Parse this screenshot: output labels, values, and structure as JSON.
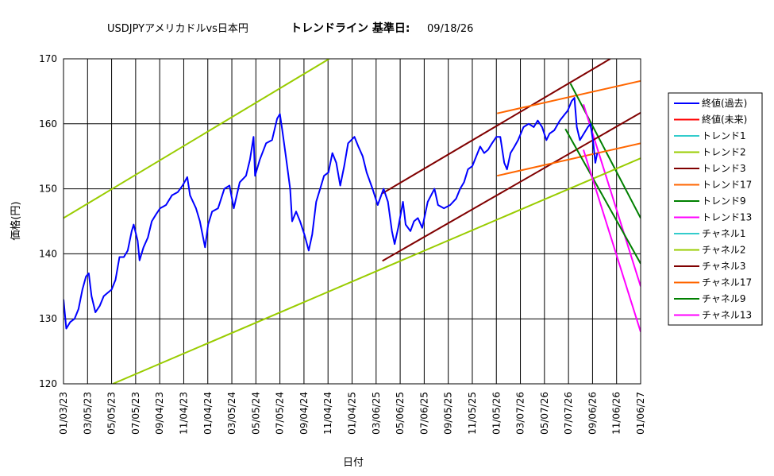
{
  "chart_data": {
    "type": "line",
    "title": {
      "part1": "USDJPYアメリカドルvs日本円",
      "part2": "トレンドライン 基準日:",
      "date": "09/18/26"
    },
    "xlabel": "日付",
    "ylabel": "価格(円)",
    "ylim": [
      120,
      170
    ],
    "yticks": [
      120,
      130,
      140,
      150,
      160,
      170
    ],
    "x_range": [
      "2023-01-03",
      "2027-01-06"
    ],
    "x_ticks": [
      {
        "date": "2023-01-03",
        "label": "01/03/23"
      },
      {
        "date": "2023-03-05",
        "label": "03/05/23"
      },
      {
        "date": "2023-05-05",
        "label": "05/05/23"
      },
      {
        "date": "2023-07-05",
        "label": "07/05/23"
      },
      {
        "date": "2023-09-04",
        "label": "09/04/23"
      },
      {
        "date": "2023-11-04",
        "label": "11/04/23"
      },
      {
        "date": "2024-01-04",
        "label": "01/04/24"
      },
      {
        "date": "2024-03-05",
        "label": "03/05/24"
      },
      {
        "date": "2024-05-05",
        "label": "05/05/24"
      },
      {
        "date": "2024-07-05",
        "label": "07/05/24"
      },
      {
        "date": "2024-09-04",
        "label": "09/04/24"
      },
      {
        "date": "2024-11-04",
        "label": "11/04/24"
      },
      {
        "date": "2025-01-04",
        "label": "01/04/25"
      },
      {
        "date": "2025-03-06",
        "label": "03/06/25"
      },
      {
        "date": "2025-05-06",
        "label": "05/06/25"
      },
      {
        "date": "2025-07-06",
        "label": "07/06/25"
      },
      {
        "date": "2025-09-05",
        "label": "09/05/25"
      },
      {
        "date": "2025-11-05",
        "label": "11/05/25"
      },
      {
        "date": "2026-01-05",
        "label": "01/05/26"
      },
      {
        "date": "2026-03-07",
        "label": "03/07/26"
      },
      {
        "date": "2026-05-07",
        "label": "05/07/26"
      },
      {
        "date": "2026-07-07",
        "label": "07/07/26"
      },
      {
        "date": "2026-09-06",
        "label": "09/06/26"
      },
      {
        "date": "2026-11-06",
        "label": "11/06/26"
      },
      {
        "date": "2027-01-06",
        "label": "01/06/27"
      }
    ],
    "grid": true,
    "legend_position": "right",
    "series": [
      {
        "name": "終値(過去)",
        "color": "#0000ff",
        "width": 2,
        "in_legend": true,
        "points": [
          [
            "2023-01-03",
            133.0
          ],
          [
            "2023-01-10",
            128.5
          ],
          [
            "2023-01-20",
            129.5
          ],
          [
            "2023-01-31",
            130.0
          ],
          [
            "2023-02-10",
            131.5
          ],
          [
            "2023-02-20",
            134.5
          ],
          [
            "2023-03-01",
            136.5
          ],
          [
            "2023-03-08",
            137.0
          ],
          [
            "2023-03-15",
            133.5
          ],
          [
            "2023-03-25",
            131.0
          ],
          [
            "2023-04-05",
            132.0
          ],
          [
            "2023-04-15",
            133.5
          ],
          [
            "2023-04-25",
            134.0
          ],
          [
            "2023-05-05",
            134.5
          ],
          [
            "2023-05-15",
            136.0
          ],
          [
            "2023-05-25",
            139.5
          ],
          [
            "2023-06-05",
            139.5
          ],
          [
            "2023-06-15",
            140.5
          ],
          [
            "2023-06-25",
            143.5
          ],
          [
            "2023-06-30",
            144.5
          ],
          [
            "2023-07-10",
            142.0
          ],
          [
            "2023-07-15",
            139.0
          ],
          [
            "2023-07-25",
            141.0
          ],
          [
            "2023-08-05",
            142.5
          ],
          [
            "2023-08-15",
            145.0
          ],
          [
            "2023-08-25",
            146.0
          ],
          [
            "2023-09-05",
            147.0
          ],
          [
            "2023-09-20",
            147.5
          ],
          [
            "2023-10-05",
            149.0
          ],
          [
            "2023-10-20",
            149.5
          ],
          [
            "2023-11-01",
            150.5
          ],
          [
            "2023-11-13",
            151.8
          ],
          [
            "2023-11-20",
            149.0
          ],
          [
            "2023-12-05",
            147.0
          ],
          [
            "2023-12-15",
            145.0
          ],
          [
            "2023-12-28",
            141.0
          ],
          [
            "2024-01-05",
            144.5
          ],
          [
            "2024-01-15",
            146.5
          ],
          [
            "2024-01-30",
            147.0
          ],
          [
            "2024-02-15",
            150.0
          ],
          [
            "2024-02-28",
            150.5
          ],
          [
            "2024-03-10",
            147.0
          ],
          [
            "2024-03-25",
            151.0
          ],
          [
            "2024-04-10",
            152.0
          ],
          [
            "2024-04-20",
            154.5
          ],
          [
            "2024-04-29",
            158.0
          ],
          [
            "2024-05-03",
            152.0
          ],
          [
            "2024-05-15",
            154.5
          ],
          [
            "2024-05-31",
            157.0
          ],
          [
            "2024-06-15",
            157.5
          ],
          [
            "2024-06-28",
            160.8
          ],
          [
            "2024-07-05",
            161.5
          ],
          [
            "2024-07-11",
            159.0
          ],
          [
            "2024-07-20",
            155.0
          ],
          [
            "2024-07-31",
            150.0
          ],
          [
            "2024-08-05",
            145.0
          ],
          [
            "2024-08-15",
            146.5
          ],
          [
            "2024-08-25",
            145.0
          ],
          [
            "2024-09-05",
            143.0
          ],
          [
            "2024-09-16",
            140.5
          ],
          [
            "2024-09-25",
            143.0
          ],
          [
            "2024-10-05",
            148.0
          ],
          [
            "2024-10-15",
            150.0
          ],
          [
            "2024-10-25",
            152.0
          ],
          [
            "2024-11-05",
            152.5
          ],
          [
            "2024-11-15",
            155.5
          ],
          [
            "2024-11-25",
            154.0
          ],
          [
            "2024-12-05",
            150.5
          ],
          [
            "2024-12-15",
            153.5
          ],
          [
            "2024-12-25",
            157.0
          ],
          [
            "2025-01-10",
            158.0
          ],
          [
            "2025-01-20",
            156.5
          ],
          [
            "2025-01-31",
            155.0
          ],
          [
            "2025-02-10",
            152.5
          ],
          [
            "2025-02-25",
            150.0
          ],
          [
            "2025-03-10",
            147.5
          ],
          [
            "2025-03-25",
            150.0
          ],
          [
            "2025-04-05",
            148.0
          ],
          [
            "2025-04-15",
            143.5
          ],
          [
            "2025-04-22",
            141.5
          ],
          [
            "2025-05-01",
            144.0
          ],
          [
            "2025-05-13",
            148.0
          ],
          [
            "2025-05-20",
            144.5
          ],
          [
            "2025-06-01",
            143.5
          ],
          [
            "2025-06-10",
            145.0
          ],
          [
            "2025-06-20",
            145.5
          ],
          [
            "2025-07-01",
            144.0
          ],
          [
            "2025-07-15",
            148.0
          ],
          [
            "2025-08-01",
            150.0
          ],
          [
            "2025-08-10",
            147.5
          ],
          [
            "2025-08-25",
            147.0
          ],
          [
            "2025-09-10",
            147.5
          ],
          [
            "2025-09-25",
            148.5
          ],
          [
            "2025-10-05",
            150.0
          ],
          [
            "2025-10-15",
            151.0
          ],
          [
            "2025-10-25",
            153.0
          ],
          [
            "2025-11-05",
            153.5
          ],
          [
            "2025-11-15",
            155.0
          ],
          [
            "2025-11-25",
            156.5
          ],
          [
            "2025-12-05",
            155.5
          ],
          [
            "2025-12-15",
            156.0
          ],
          [
            "2025-12-25",
            157.0
          ],
          [
            "2026-01-05",
            158.0
          ],
          [
            "2026-01-15",
            158.0
          ],
          [
            "2026-01-25",
            154.0
          ],
          [
            "2026-02-01",
            153.0
          ],
          [
            "2026-02-10",
            155.5
          ],
          [
            "2026-02-20",
            156.5
          ],
          [
            "2026-03-01",
            157.5
          ],
          [
            "2026-03-15",
            159.5
          ],
          [
            "2026-03-28",
            160.0
          ],
          [
            "2026-04-10",
            159.5
          ],
          [
            "2026-04-20",
            160.5
          ],
          [
            "2026-05-01",
            159.5
          ],
          [
            "2026-05-12",
            157.5
          ],
          [
            "2026-05-20",
            158.5
          ],
          [
            "2026-06-01",
            159.0
          ],
          [
            "2026-06-15",
            160.5
          ],
          [
            "2026-06-28",
            161.5
          ],
          [
            "2026-07-05",
            162.0
          ],
          [
            "2026-07-15",
            163.5
          ],
          [
            "2026-07-22",
            164.0
          ],
          [
            "2026-07-28",
            159.5
          ],
          [
            "2026-08-05",
            157.5
          ],
          [
            "2026-08-15",
            158.5
          ],
          [
            "2026-08-25",
            159.5
          ],
          [
            "2026-09-01",
            160.0
          ],
          [
            "2026-09-08",
            157.0
          ],
          [
            "2026-09-13",
            154.0
          ],
          [
            "2026-09-18",
            155.5
          ]
        ]
      },
      {
        "name": "終値(未来)",
        "color": "#ff0000",
        "width": 1,
        "in_legend": true,
        "points": []
      },
      {
        "name": "トレンド1",
        "color": "#33cccc",
        "width": 1,
        "in_legend": true,
        "points": []
      },
      {
        "name": "トレンド2",
        "color": "#99cc00",
        "width": 2,
        "in_legend": true,
        "points": [
          [
            "2023-01-03",
            145.5
          ],
          [
            "2024-11-07",
            170.0
          ]
        ]
      },
      {
        "name": "トレンド3",
        "color": "#800000",
        "width": 2,
        "in_legend": true,
        "points": [
          [
            "2025-03-22",
            149.3
          ],
          [
            "2026-10-21",
            170.0
          ]
        ]
      },
      {
        "name": "トレンド17",
        "color": "#ff6600",
        "width": 2,
        "in_legend": true,
        "points": [
          [
            "2026-01-07",
            161.6
          ],
          [
            "2027-01-06",
            166.6
          ]
        ]
      },
      {
        "name": "トレンド9",
        "color": "#008000",
        "width": 2,
        "in_legend": true,
        "points": [
          [
            "2026-07-12",
            166.2
          ],
          [
            "2027-01-06",
            145.5
          ]
        ]
      },
      {
        "name": "トレンド13",
        "color": "#ff00ff",
        "width": 2,
        "in_legend": true,
        "points": [
          [
            "2026-08-14",
            163.0
          ],
          [
            "2027-01-06",
            135.0
          ]
        ]
      },
      {
        "name": "チャネル1",
        "color": "#33cccc",
        "width": 1,
        "in_legend": true,
        "points": []
      },
      {
        "name": "チャネル2",
        "color": "#99cc00",
        "width": 2,
        "in_legend": true,
        "points": [
          [
            "2023-05-08",
            120.0
          ],
          [
            "2027-01-06",
            154.7
          ]
        ]
      },
      {
        "name": "チャネル3",
        "color": "#800000",
        "width": 2,
        "in_legend": true,
        "points": [
          [
            "2025-03-22",
            138.9
          ],
          [
            "2027-01-06",
            161.7
          ]
        ]
      },
      {
        "name": "チャネル17",
        "color": "#ff6600",
        "width": 2,
        "in_legend": true,
        "points": [
          [
            "2026-01-07",
            152.0
          ],
          [
            "2027-01-06",
            157.0
          ]
        ]
      },
      {
        "name": "チャネル9",
        "color": "#008000",
        "width": 2,
        "in_legend": true,
        "points": [
          [
            "2026-06-29",
            159.2
          ],
          [
            "2027-01-06",
            138.5
          ]
        ]
      },
      {
        "name": "チャネル13",
        "color": "#ff00ff",
        "width": 2,
        "in_legend": true,
        "points": [
          [
            "2026-08-14",
            156.0
          ],
          [
            "2027-01-06",
            128.0
          ]
        ]
      }
    ]
  }
}
